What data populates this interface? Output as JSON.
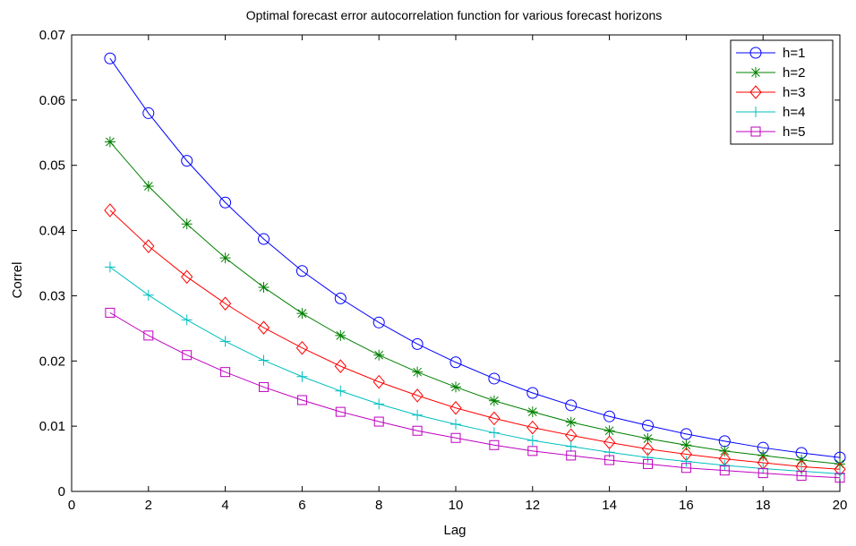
{
  "chart_data": {
    "type": "line",
    "title": "Optimal forecast error autocorrelation function for various forecast horizons",
    "xlabel": "Lag",
    "ylabel": "Correl",
    "xlim": [
      0,
      20
    ],
    "ylim": [
      0,
      0.07
    ],
    "x_ticks": [
      0,
      2,
      4,
      6,
      8,
      10,
      12,
      14,
      16,
      18,
      20
    ],
    "x_tick_labels": [
      "0",
      "2",
      "4",
      "6",
      "8",
      "10",
      "12",
      "14",
      "16",
      "18",
      "20"
    ],
    "y_ticks": [
      0,
      0.01,
      0.02,
      0.03,
      0.04,
      0.05,
      0.06,
      0.07
    ],
    "y_tick_labels": [
      "0",
      "0.01",
      "0.02",
      "0.03",
      "0.04",
      "0.05",
      "0.06",
      "0.07"
    ],
    "grid": false,
    "legend_position": "top-right",
    "x": [
      1,
      2,
      3,
      4,
      5,
      6,
      7,
      8,
      9,
      10,
      11,
      12,
      13,
      14,
      15,
      16,
      17,
      18,
      19,
      20
    ],
    "series": [
      {
        "name": "h=1",
        "color": "#0000ff",
        "marker": "circle",
        "values": [
          0.0664,
          0.058,
          0.0507,
          0.0443,
          0.0387,
          0.0338,
          0.0296,
          0.0259,
          0.0226,
          0.0198,
          0.0173,
          0.0151,
          0.0132,
          0.0115,
          0.0101,
          0.0088,
          0.0077,
          0.0067,
          0.0059,
          0.0052
        ]
      },
      {
        "name": "h=2",
        "color": "#008000",
        "marker": "star",
        "values": [
          0.0536,
          0.0468,
          0.041,
          0.0358,
          0.0313,
          0.0273,
          0.0239,
          0.0209,
          0.0183,
          0.016,
          0.0139,
          0.0122,
          0.0106,
          0.0093,
          0.0081,
          0.0071,
          0.0062,
          0.0055,
          0.0048,
          0.0042
        ]
      },
      {
        "name": "h=3",
        "color": "#ff0000",
        "marker": "diamond",
        "values": [
          0.0431,
          0.0376,
          0.0329,
          0.0288,
          0.0251,
          0.022,
          0.0192,
          0.0168,
          0.0147,
          0.0128,
          0.0112,
          0.0098,
          0.0086,
          0.0075,
          0.0065,
          0.0057,
          0.005,
          0.0044,
          0.0038,
          0.0034
        ]
      },
      {
        "name": "h=4",
        "color": "#00bfbf",
        "marker": "plus",
        "values": [
          0.0344,
          0.0301,
          0.0263,
          0.023,
          0.0201,
          0.0176,
          0.0154,
          0.0134,
          0.0117,
          0.0103,
          0.009,
          0.0078,
          0.0069,
          0.006,
          0.0052,
          0.0046,
          0.004,
          0.0035,
          0.0031,
          0.0027
        ]
      },
      {
        "name": "h=5",
        "color": "#bf00bf",
        "marker": "square",
        "values": [
          0.0274,
          0.0239,
          0.0209,
          0.0183,
          0.016,
          0.014,
          0.0122,
          0.0107,
          0.0093,
          0.0082,
          0.0071,
          0.0062,
          0.0055,
          0.0048,
          0.0042,
          0.0036,
          0.0032,
          0.0028,
          0.0024,
          0.0021
        ]
      }
    ]
  }
}
